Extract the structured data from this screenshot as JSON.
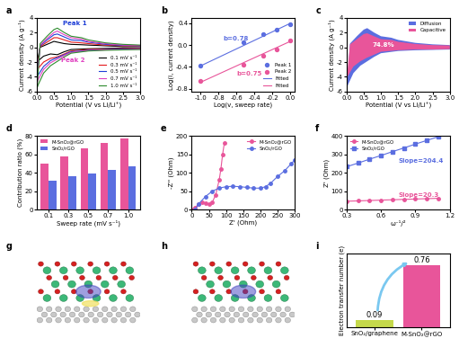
{
  "chart_data": [
    {
      "type": "line",
      "title": "a",
      "x_label": "Potential (V vs Li/Li⁺)",
      "y_label": "Current density (A g⁻¹)",
      "x": [
        3.0,
        2.5,
        2.0,
        1.5,
        1.0,
        0.8,
        0.6,
        0.4,
        0.2,
        0.05,
        0.01,
        0.1,
        0.3,
        0.5,
        0.6,
        0.8,
        1.0,
        1.3,
        1.5,
        2.0,
        2.5,
        3.0
      ],
      "series": [
        {
          "name": "0.1 mV s⁻¹",
          "color": "#000000",
          "values": [
            -0.1,
            -0.1,
            -0.15,
            -0.2,
            -0.3,
            -0.6,
            -1.0,
            -0.9,
            -1.2,
            -1.8,
            -2.0,
            0.0,
            0.4,
            0.8,
            0.7,
            0.5,
            0.4,
            0.35,
            0.3,
            0.2,
            0.1,
            0.1
          ]
        },
        {
          "name": "0.3 mV s⁻¹",
          "color": "#e41a1c",
          "values": [
            -0.15,
            -0.2,
            -0.25,
            -0.3,
            -0.5,
            -0.9,
            -1.3,
            -1.5,
            -2.0,
            -2.8,
            -3.2,
            0.1,
            0.7,
            1.3,
            1.3,
            1.0,
            0.7,
            0.6,
            0.5,
            0.3,
            0.2,
            0.15
          ]
        },
        {
          "name": "0.5 mV s⁻¹",
          "color": "#1f3fd6",
          "values": [
            -0.2,
            -0.25,
            -0.3,
            -0.4,
            -0.6,
            -1.0,
            -1.4,
            -1.8,
            -2.6,
            -3.7,
            -4.1,
            0.2,
            1.0,
            1.7,
            1.8,
            1.4,
            1.0,
            0.9,
            0.7,
            0.4,
            0.25,
            0.2
          ]
        },
        {
          "name": "0.7 mV s⁻¹",
          "color": "#e040c0",
          "values": [
            -0.25,
            -0.3,
            -0.35,
            -0.45,
            -0.7,
            -1.1,
            -1.6,
            -2.1,
            -3.0,
            -4.3,
            -4.8,
            0.3,
            1.2,
            2.0,
            2.2,
            1.7,
            1.3,
            1.1,
            0.8,
            0.5,
            0.3,
            0.25
          ]
        },
        {
          "name": "1.0 mV s⁻¹",
          "color": "#2e8b2e",
          "values": [
            -0.3,
            -0.35,
            -0.4,
            -0.5,
            -0.8,
            -1.3,
            -1.9,
            -2.5,
            -3.5,
            -5.0,
            -5.5,
            0.5,
            1.5,
            2.4,
            2.6,
            2.0,
            1.5,
            1.3,
            1.0,
            0.6,
            0.4,
            0.3
          ]
        }
      ],
      "xlim": [
        0.0,
        3.0
      ],
      "xticks": [
        0.0,
        0.5,
        1.0,
        1.5,
        2.0,
        2.5,
        3.0
      ],
      "ylim": [
        -6,
        4
      ],
      "yticks": [
        -6,
        -4,
        -2,
        0,
        2,
        4
      ],
      "legend": "lower right",
      "annotations": [
        {
          "text": "Peak 1",
          "x": 0.75,
          "y": 3.3,
          "color": "#1f3fd6"
        },
        {
          "text": "Peak 2",
          "x": 0.7,
          "y": -1.7,
          "color": "#e040c0"
        }
      ]
    },
    {
      "type": "scatter",
      "title": "b",
      "x_label": "Log(v, sweep rate)",
      "y_label": "Log(i, current density)",
      "x": [
        -1.0,
        -0.52,
        -0.3,
        -0.15,
        0.0
      ],
      "series": [
        {
          "name": "Peak 1",
          "type": "scatter",
          "marker": "circle",
          "color": "#5b6ee0",
          "values": [
            -0.38,
            0.06,
            0.2,
            0.28,
            0.38
          ]
        },
        {
          "name": "Peak 2",
          "type": "scatter",
          "marker": "circle",
          "color": "#e8559a",
          "values": [
            -0.66,
            -0.36,
            -0.2,
            -0.08,
            0.08
          ]
        },
        {
          "name": "Fitted",
          "type": "line",
          "color": "#5b6ee0",
          "values": [
            -0.38,
            -0.006,
            0.166,
            0.283,
            0.4
          ]
        },
        {
          "name": "Fitted",
          "type": "line",
          "color": "#e8559a",
          "values": [
            -0.68,
            -0.32,
            -0.155,
            -0.0425,
            0.07
          ]
        }
      ],
      "xlim": [
        -1.1,
        0.05
      ],
      "xticks": [
        -1.0,
        -0.8,
        -0.6,
        -0.4,
        -0.2,
        0.0
      ],
      "ylim": [
        -0.85,
        0.5
      ],
      "yticks": [
        -0.8,
        -0.4,
        0.0,
        0.4
      ],
      "legend": "lower right",
      "annotations": [
        {
          "text": "b=0.78",
          "x": -0.75,
          "y": 0.12,
          "color": "#5b6ee0"
        },
        {
          "text": "b=0.75",
          "x": -0.6,
          "y": -0.52,
          "color": "#e8559a"
        }
      ]
    },
    {
      "type": "area",
      "title": "c",
      "x_label": "Potential (V vs Li/Li⁺)",
      "y_label": "Current density (A g⁻¹)",
      "x": [
        3.0,
        2.5,
        2.0,
        1.5,
        1.0,
        0.8,
        0.6,
        0.4,
        0.2,
        0.05,
        0.01,
        0.1,
        0.3,
        0.5,
        0.6,
        0.8,
        1.0,
        1.3,
        1.5,
        2.0,
        2.5,
        3.0
      ],
      "series": [
        {
          "name": "Diffusion",
          "color": "#5b6ee0",
          "values": [
            -0.3,
            -0.35,
            -0.4,
            -0.5,
            -0.8,
            -1.3,
            -1.9,
            -2.5,
            -3.5,
            -5.0,
            -5.5,
            0.5,
            1.5,
            2.4,
            2.6,
            2.0,
            1.5,
            1.3,
            1.0,
            0.6,
            0.4,
            0.3
          ]
        },
        {
          "name": "Capacitive",
          "color": "#e8559a",
          "values": [
            -0.25,
            -0.3,
            -0.3,
            -0.4,
            -0.6,
            -1.0,
            -1.4,
            -1.9,
            -2.6,
            -3.8,
            -4.1,
            0.4,
            1.1,
            1.8,
            1.9,
            1.5,
            1.1,
            1.0,
            0.75,
            0.45,
            0.3,
            0.25
          ]
        }
      ],
      "xlim": [
        0.0,
        3.0
      ],
      "xticks": [
        0.0,
        0.5,
        1.0,
        1.5,
        2.0,
        2.5,
        3.0
      ],
      "ylim": [
        -6,
        4
      ],
      "yticks": [
        -6,
        -4,
        -2,
        0,
        2,
        4
      ],
      "legend": "upper right",
      "annotations": [
        {
          "text": "74.8%",
          "x": 0.75,
          "y": 0.3,
          "color": "#ffffff"
        }
      ]
    },
    {
      "type": "bar",
      "title": "d",
      "x_label": "Sweep rate (mV s⁻¹)",
      "y_label": "Contribution ratio (%)",
      "categories": [
        "0.1",
        "0.3",
        "0.5",
        "0.7",
        "1.0"
      ],
      "series": [
        {
          "name": "M-SnO₂@rGO",
          "color": "#e8559a",
          "values": [
            50,
            58,
            66,
            72,
            77
          ]
        },
        {
          "name": "SnO₂/rGO",
          "color": "#5b6ee0",
          "values": [
            31,
            36,
            39,
            43,
            47
          ]
        }
      ],
      "ylim": [
        0,
        80
      ],
      "yticks": [
        0,
        20,
        40,
        60,
        80
      ],
      "legend": "upper left"
    },
    {
      "type": "line",
      "title": "e",
      "x_label": "Z' (Ohm)",
      "y_label": "-Z'' (Ohm)",
      "series": [
        {
          "name": "M-SnO₂@rGO",
          "color": "#e8559a",
          "marker": "circle",
          "x": [
            5,
            10,
            20,
            30,
            40,
            50,
            60,
            70,
            80,
            85,
            90,
            95
          ],
          "values": [
            0,
            5,
            15,
            20,
            18,
            15,
            20,
            40,
            80,
            110,
            150,
            180
          ]
        },
        {
          "name": "SnO₂/rGO",
          "color": "#5b6ee0",
          "marker": "circle",
          "x": [
            10,
            20,
            40,
            60,
            80,
            100,
            120,
            140,
            160,
            180,
            200,
            215,
            230,
            250,
            270,
            290,
            300
          ],
          "values": [
            0,
            15,
            35,
            50,
            58,
            62,
            63,
            62,
            60,
            58,
            58,
            62,
            72,
            90,
            105,
            125,
            135
          ]
        }
      ],
      "xlim": [
        0,
        300
      ],
      "xticks": [
        0,
        50,
        100,
        150,
        200,
        250,
        300
      ],
      "ylim": [
        0,
        200
      ],
      "yticks": [
        0,
        50,
        100,
        150,
        200
      ],
      "legend": "upper right"
    },
    {
      "type": "line",
      "title": "f",
      "x_label": "ω⁻¹/²",
      "y_label": "Z' (Ohm)",
      "x": [
        0.3,
        0.4,
        0.5,
        0.6,
        0.7,
        0.8,
        0.9,
        1.0,
        1.1
      ],
      "series": [
        {
          "name": "M-SnO₂@rGO",
          "color": "#e8559a",
          "marker": "circle",
          "values": [
            45,
            47,
            49,
            51,
            53,
            55,
            57,
            59,
            61
          ]
        },
        {
          "name": "SnO₂/rGO",
          "color": "#5b6ee0",
          "marker": "square",
          "values": [
            232,
            252,
            273,
            293,
            314,
            334,
            355,
            375,
            395
          ]
        }
      ],
      "xlim": [
        0.3,
        1.2
      ],
      "xticks": [
        0.3,
        0.6,
        0.9,
        1.2
      ],
      "ylim": [
        0,
        400
      ],
      "yticks": [
        0,
        100,
        200,
        300,
        400
      ],
      "legend": "upper left",
      "annotations": [
        {
          "text": "Slope=204.4",
          "x": 0.75,
          "y": 265,
          "color": "#5b6ee0"
        },
        {
          "text": "Slope=20.3",
          "x": 0.75,
          "y": 80,
          "color": "#e8559a"
        }
      ]
    },
    {
      "type": "image",
      "title": "g"
    },
    {
      "type": "image",
      "title": "h"
    },
    {
      "type": "bar",
      "title": "i",
      "y_label": "Electron transfer number (e)",
      "categories": [
        "SnO₂/graphene",
        "M-SnO₂@rGO"
      ],
      "values": [
        0.09,
        0.76
      ],
      "colors": [
        "#c5d94b",
        "#e8559a"
      ],
      "ylim": [
        0,
        0.9
      ],
      "data_labels": true,
      "tick_labels": "x"
    }
  ]
}
